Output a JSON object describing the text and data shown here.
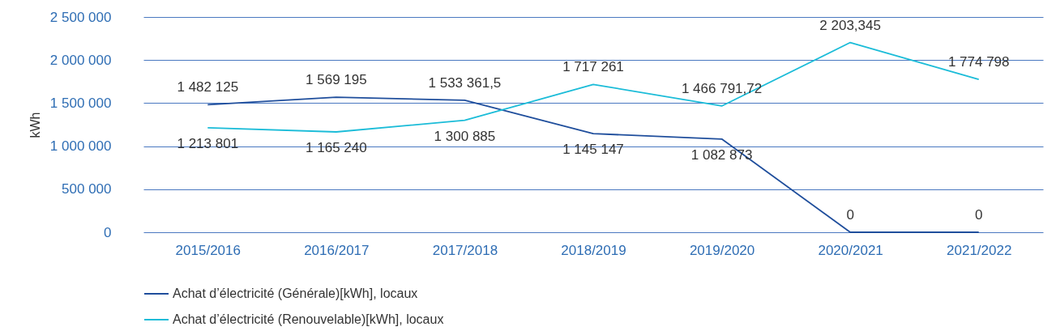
{
  "chart_data": {
    "type": "line",
    "ylabel": "kWh",
    "categories": [
      "2015/2016",
      "2016/2017",
      "2017/2018",
      "2018/2019",
      "2019/2020",
      "2020/2021",
      "2021/2022"
    ],
    "series": [
      {
        "name": "Achat d’électricité (Générale)[kWh], locaux",
        "color": "#1f4e9c",
        "values": [
          1482125,
          1569195,
          1533361.5,
          1145147,
          1082873,
          0,
          0
        ],
        "value_labels": [
          "1 482 125",
          "1 569 195",
          "1 533 361,5",
          "1 145 147",
          "1 082 873",
          "0",
          "0"
        ]
      },
      {
        "name": "Achat d’électricité (Renouvelable)[kWh], locaux",
        "color": "#1bbcd8",
        "values": [
          1213801,
          1165240,
          1300885,
          1717261,
          1466791.72,
          2203345,
          1774798
        ],
        "value_labels": [
          "1 213 801",
          "1 165 240",
          "1 300 885",
          "1 717 261",
          "1 466 791,72",
          "2 203,345",
          "1 774 798"
        ]
      }
    ],
    "ylim": [
      0,
      2500000
    ],
    "yticks": [
      {
        "value": 0,
        "label": "0"
      },
      {
        "value": 500000,
        "label": "500 000"
      },
      {
        "value": 1000000,
        "label": "1 000 000"
      },
      {
        "value": 1500000,
        "label": "1 500 000"
      },
      {
        "value": 2000000,
        "label": "2 000 000"
      },
      {
        "value": 2500000,
        "label": "2 500 000"
      }
    ],
    "grid": "y",
    "legend": "bottom left",
    "marker": "none",
    "line_style": "solid"
  }
}
